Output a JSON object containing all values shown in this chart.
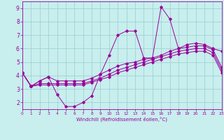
{
  "xlabel": "Windchill (Refroidissement éolien,°C)",
  "xlim": [
    0,
    23
  ],
  "ylim": [
    1.5,
    9.5
  ],
  "yticks": [
    2,
    3,
    4,
    5,
    6,
    7,
    8,
    9
  ],
  "xticks": [
    0,
    1,
    2,
    3,
    4,
    5,
    6,
    7,
    8,
    9,
    10,
    11,
    12,
    13,
    14,
    15,
    16,
    17,
    18,
    19,
    20,
    21,
    22,
    23
  ],
  "bg_color": "#c8eeee",
  "line_color": "#990099",
  "grid_color": "#99cccc",
  "series": [
    [
      4.2,
      3.2,
      3.6,
      3.9,
      2.6,
      1.7,
      1.7,
      2.0,
      2.5,
      4.1,
      5.5,
      7.0,
      7.3,
      7.3,
      5.3,
      5.3,
      9.1,
      8.2,
      6.0,
      6.3,
      6.4,
      6.3,
      6.0,
      5.8
    ],
    [
      4.2,
      3.2,
      3.6,
      3.9,
      3.6,
      3.6,
      3.6,
      3.6,
      3.8,
      4.1,
      4.4,
      4.7,
      4.9,
      5.0,
      5.2,
      5.3,
      5.5,
      5.8,
      6.0,
      6.1,
      6.2,
      6.2,
      5.9,
      4.6
    ],
    [
      4.2,
      3.2,
      3.4,
      3.4,
      3.4,
      3.4,
      3.4,
      3.4,
      3.6,
      3.8,
      4.1,
      4.4,
      4.6,
      4.8,
      5.0,
      5.2,
      5.4,
      5.6,
      5.8,
      5.9,
      6.0,
      6.0,
      5.7,
      4.4
    ],
    [
      4.2,
      3.2,
      3.3,
      3.3,
      3.3,
      3.3,
      3.3,
      3.3,
      3.5,
      3.7,
      3.9,
      4.2,
      4.4,
      4.6,
      4.8,
      5.0,
      5.2,
      5.4,
      5.6,
      5.7,
      5.8,
      5.8,
      5.5,
      4.2
    ]
  ]
}
